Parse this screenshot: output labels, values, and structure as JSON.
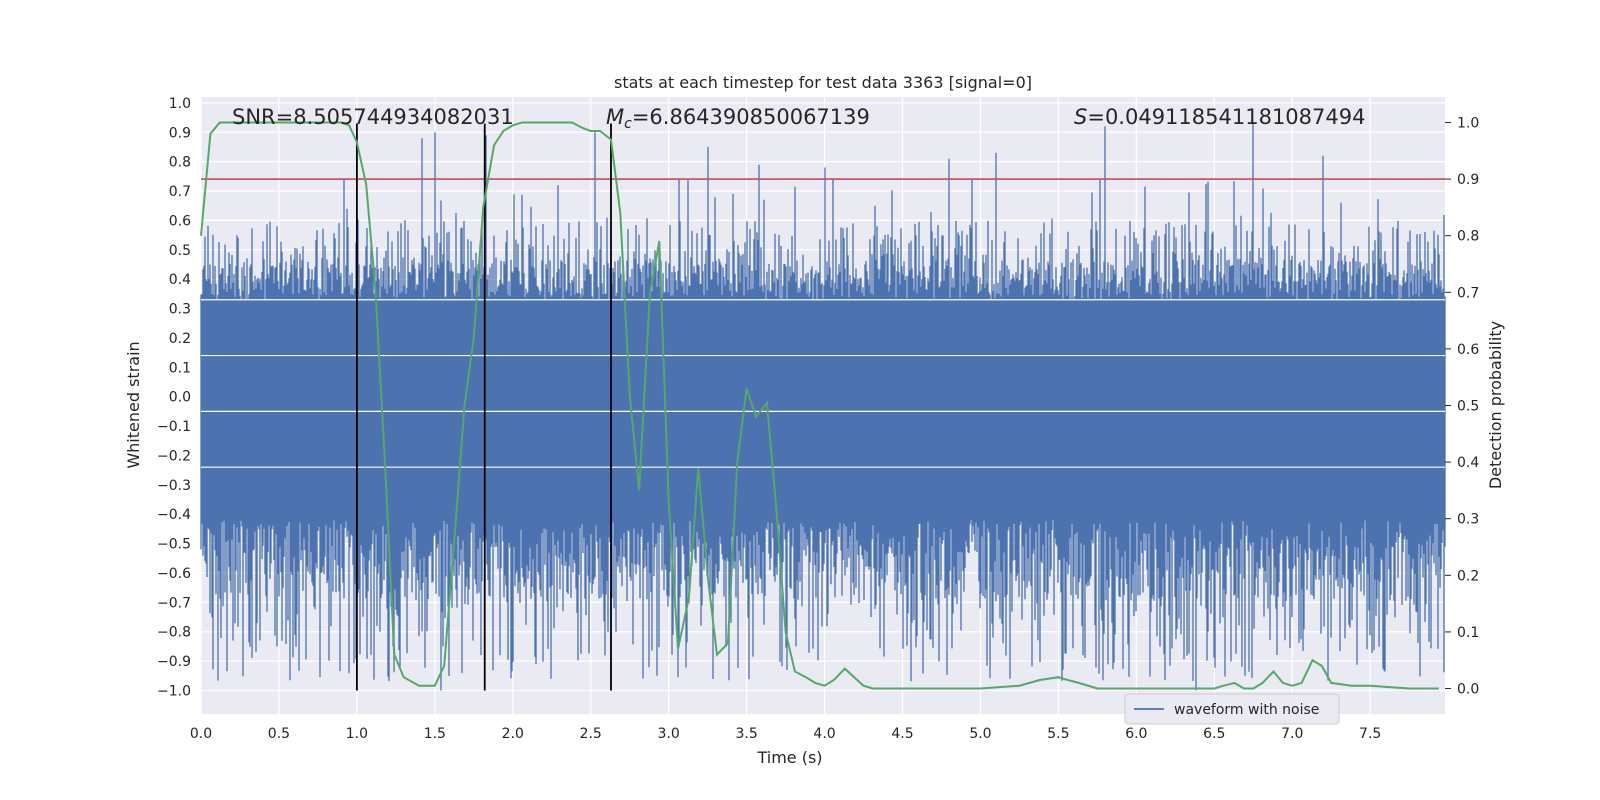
{
  "chart_data": {
    "type": "line",
    "title": "stats at each timestep for test data 3363 [signal=0]",
    "xlabel": "Time (s)",
    "ylabel_left": "Whitened strain",
    "ylabel_right": "Detection probability",
    "xlim": [
      0.0,
      7.98
    ],
    "ylim_left": [
      -1.08,
      1.02
    ],
    "ylim_right": [
      -0.045,
      1.045
    ],
    "x_ticks": [
      "0.0",
      "0.5",
      "1.0",
      "1.5",
      "2.0",
      "2.5",
      "3.0",
      "3.5",
      "4.0",
      "4.5",
      "5.0",
      "5.5",
      "6.0",
      "6.5",
      "7.0",
      "7.5"
    ],
    "y_ticks_left": [
      "1.0",
      "0.9",
      "0.8",
      "0.7",
      "0.6",
      "0.5",
      "0.4",
      "0.3",
      "0.2",
      "0.1",
      "0.0",
      "−0.1",
      "−0.2",
      "−0.3",
      "−0.4",
      "−0.5",
      "−0.6",
      "−0.7",
      "−0.8",
      "−0.9",
      "−1.0"
    ],
    "y_ticks_right": [
      "1.0",
      "0.9",
      "0.8",
      "0.7",
      "0.6",
      "0.5",
      "0.4",
      "0.3",
      "0.2",
      "0.1",
      "0.0"
    ],
    "annotations": {
      "snr": "SNR=8.505744934082031",
      "mc_symbol": "M",
      "mc_sub": "c",
      "mc_value": "=6.864390850067139",
      "s_symbol": "S",
      "s_value": "=0.0491185411810874​94"
    },
    "threshold": 0.9,
    "vertical_lines_x": [
      1.0,
      1.82,
      2.63
    ],
    "series": [
      {
        "name": "waveform with noise",
        "axis": "left",
        "color": "#4c72b0",
        "envelope_typical": 0.45,
        "dense_band": [
          -0.42,
          0.33
        ],
        "peaks": [
          {
            "x": 0.38,
            "y": -0.83
          },
          {
            "x": 0.49,
            "y": -0.85
          },
          {
            "x": 0.92,
            "y": 0.74
          },
          {
            "x": 1.15,
            "y": -0.8
          },
          {
            "x": 1.23,
            "y": -0.85
          },
          {
            "x": 1.42,
            "y": 0.88
          },
          {
            "x": 1.5,
            "y": 0.9
          },
          {
            "x": 1.54,
            "y": -1.0
          },
          {
            "x": 1.83,
            "y": 0.89
          },
          {
            "x": 1.92,
            "y": -0.88
          },
          {
            "x": 2.53,
            "y": 0.9
          },
          {
            "x": 3.25,
            "y": 0.85
          },
          {
            "x": 3.4,
            "y": -0.77
          },
          {
            "x": 3.58,
            "y": 0.79
          },
          {
            "x": 4.0,
            "y": 0.78
          },
          {
            "x": 4.3,
            "y": -0.75
          },
          {
            "x": 4.8,
            "y": 0.81
          },
          {
            "x": 5.0,
            "y": -0.72
          },
          {
            "x": 5.1,
            "y": 0.83
          },
          {
            "x": 5.65,
            "y": -0.78
          },
          {
            "x": 5.8,
            "y": 0.92
          },
          {
            "x": 6.0,
            "y": -0.73
          },
          {
            "x": 6.38,
            "y": -1.0
          },
          {
            "x": 6.75,
            "y": 0.93
          },
          {
            "x": 7.0,
            "y": -0.75
          },
          {
            "x": 7.2,
            "y": 0.82
          },
          {
            "x": 7.25,
            "y": -0.82
          }
        ]
      },
      {
        "name": "detection probability",
        "axis": "right",
        "color": "#55a868",
        "x": [
          0.0,
          0.06,
          0.12,
          0.3,
          0.5,
          0.7,
          0.8,
          0.9,
          0.95,
          1.0,
          1.06,
          1.12,
          1.18,
          1.24,
          1.3,
          1.4,
          1.5,
          1.56,
          1.63,
          1.69,
          1.75,
          1.81,
          1.88,
          1.94,
          2.0,
          2.06,
          2.13,
          2.25,
          2.38,
          2.45,
          2.5,
          2.56,
          2.63,
          2.69,
          2.75,
          2.81,
          2.88,
          2.94,
          3.0,
          3.06,
          3.13,
          3.19,
          3.25,
          3.31,
          3.38,
          3.44,
          3.5,
          3.56,
          3.63,
          3.69,
          3.75,
          3.81,
          3.88,
          3.94,
          4.0,
          4.06,
          4.13,
          4.19,
          4.25,
          4.31,
          4.38,
          4.5,
          4.75,
          5.0,
          5.25,
          5.38,
          5.5,
          5.56,
          5.63,
          5.75,
          5.88,
          6.0,
          6.25,
          6.5,
          6.56,
          6.63,
          6.69,
          6.75,
          6.81,
          6.88,
          6.94,
          7.0,
          7.06,
          7.13,
          7.19,
          7.25,
          7.38,
          7.5,
          7.75,
          7.94
        ],
        "values": [
          0.8,
          0.98,
          1.0,
          1.0,
          1.0,
          1.0,
          1.0,
          1.0,
          0.995,
          0.965,
          0.89,
          0.7,
          0.4,
          0.06,
          0.02,
          0.005,
          0.005,
          0.04,
          0.28,
          0.5,
          0.62,
          0.85,
          0.96,
          0.985,
          0.995,
          1.0,
          1.0,
          1.0,
          1.0,
          0.99,
          0.985,
          0.985,
          0.97,
          0.84,
          0.52,
          0.35,
          0.7,
          0.79,
          0.33,
          0.07,
          0.16,
          0.39,
          0.2,
          0.06,
          0.08,
          0.4,
          0.53,
          0.48,
          0.505,
          0.32,
          0.1,
          0.03,
          0.02,
          0.01,
          0.005,
          0.015,
          0.035,
          0.02,
          0.005,
          0.0,
          0.0,
          0.0,
          0.0,
          0.0,
          0.005,
          0.015,
          0.02,
          0.015,
          0.01,
          0.0,
          0.0,
          0.0,
          0.0,
          0.0,
          0.005,
          0.01,
          0.0,
          0.0,
          0.01,
          0.03,
          0.01,
          0.005,
          0.01,
          0.05,
          0.04,
          0.01,
          0.005,
          0.005,
          0.0,
          0.0
        ]
      }
    ],
    "legend": {
      "label": "waveform with noise",
      "location": "lower-right"
    }
  }
}
